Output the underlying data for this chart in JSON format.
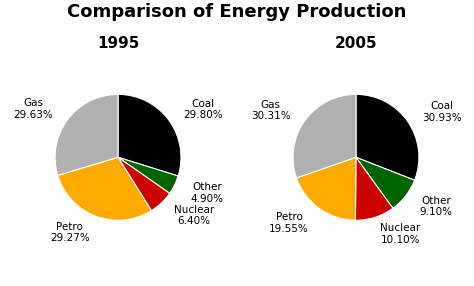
{
  "title": "Comparison of Energy Production",
  "title_fontsize": 13,
  "title_fontweight": "bold",
  "charts": [
    {
      "year": "1995",
      "labels": [
        "Coal",
        "Other",
        "Nuclear",
        "Petro",
        "Gas"
      ],
      "values": [
        29.8,
        4.9,
        6.4,
        29.27,
        29.63
      ],
      "colors": [
        "#000000",
        "#006400",
        "#cc0000",
        "#ffaa00",
        "#b0b0b0"
      ],
      "startangle": 90,
      "counterclock": false
    },
    {
      "year": "2005",
      "labels": [
        "Coal",
        "Other",
        "Nuclear",
        "Petro",
        "Gas"
      ],
      "values": [
        30.93,
        9.1,
        10.1,
        19.55,
        30.31
      ],
      "colors": [
        "#000000",
        "#006400",
        "#cc0000",
        "#ffaa00",
        "#b0b0b0"
      ],
      "startangle": 90,
      "counterclock": false
    }
  ],
  "label_fontsize": 7.5,
  "year_fontsize": 11,
  "year_fontweight": "bold"
}
